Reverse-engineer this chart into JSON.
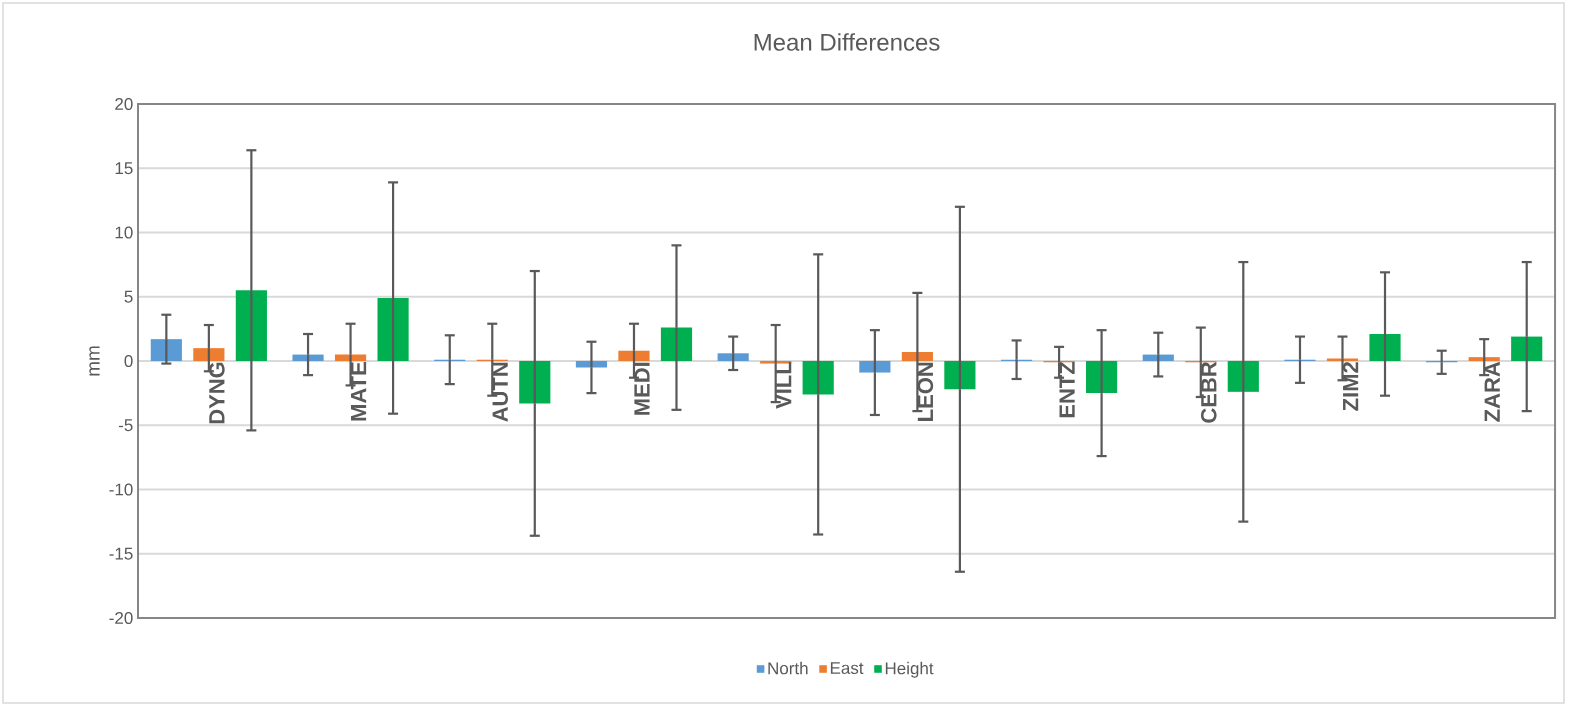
{
  "chart_data": {
    "type": "bar",
    "title": "Mean Differences",
    "ylabel": "mm",
    "categories": [
      "DYNG",
      "MATE",
      "AUTN",
      "MEDI",
      "VILL",
      "LEON",
      "ENTZ",
      "CEBR",
      "ZIM2",
      "ZARA"
    ],
    "series": [
      {
        "name": "North",
        "color": "#5b9bd5",
        "values": [
          1.7,
          0.5,
          0.1,
          -0.5,
          0.6,
          -0.9,
          0.1,
          0.5,
          0.1,
          -0.1
        ],
        "errors": [
          1.9,
          1.6,
          1.9,
          2.0,
          1.3,
          3.3,
          1.5,
          1.7,
          1.8,
          0.9
        ]
      },
      {
        "name": "East",
        "color": "#ed7d31",
        "values": [
          1.0,
          0.5,
          0.1,
          0.8,
          -0.2,
          0.7,
          -0.1,
          -0.1,
          0.2,
          0.3
        ],
        "errors": [
          1.8,
          2.4,
          2.8,
          2.1,
          3.0,
          4.6,
          1.2,
          2.7,
          1.7,
          1.4
        ]
      },
      {
        "name": "Height",
        "color": "#00b050",
        "values": [
          5.5,
          4.9,
          -3.3,
          2.6,
          -2.6,
          -2.2,
          -2.5,
          -2.4,
          2.1,
          1.9
        ],
        "errors": [
          10.9,
          9.0,
          10.3,
          6.4,
          10.9,
          14.2,
          4.9,
          10.1,
          4.8,
          5.8
        ]
      }
    ],
    "ylim": [
      -20,
      20
    ],
    "yticks": [
      -20,
      -15,
      -10,
      -5,
      0,
      5,
      10,
      15,
      20
    ],
    "grid": "y",
    "legend": "bottom"
  }
}
